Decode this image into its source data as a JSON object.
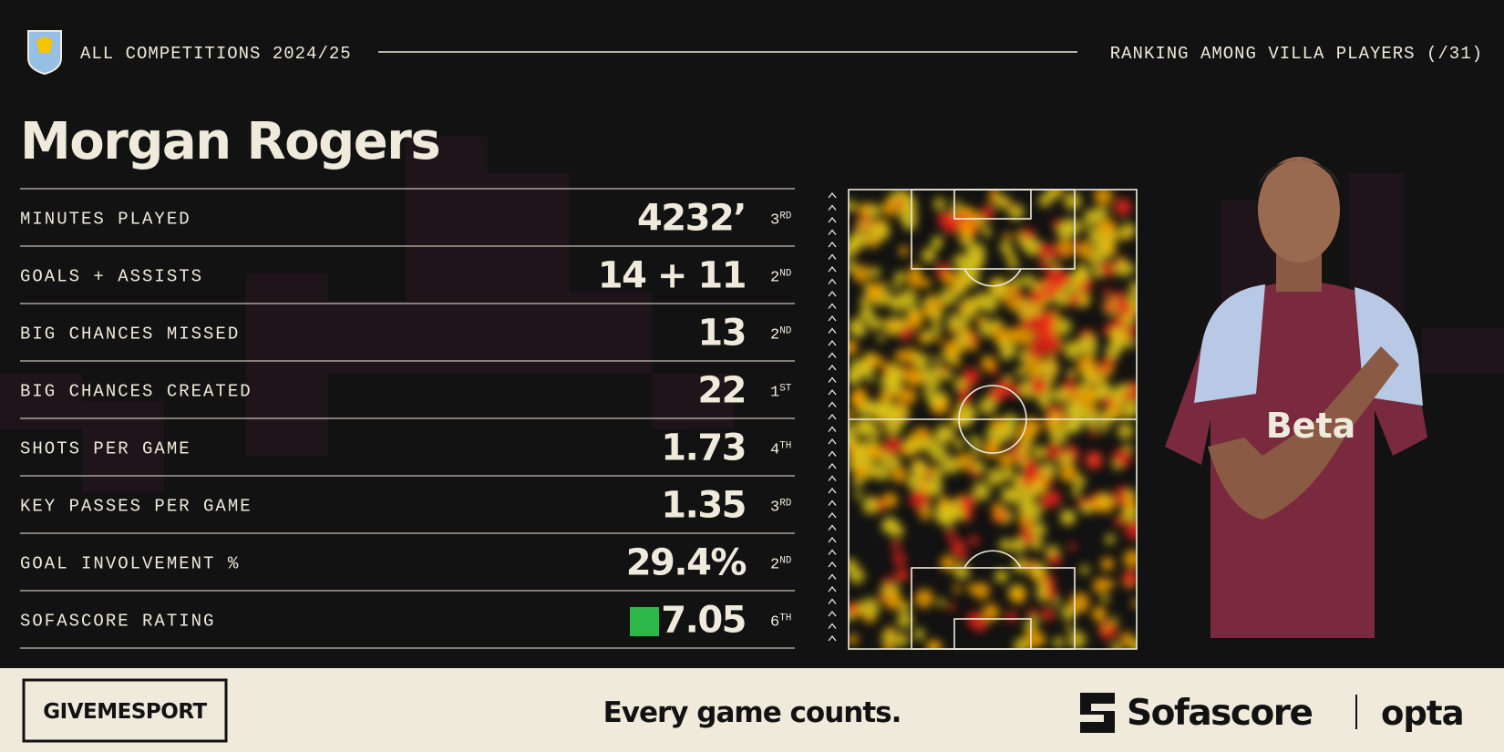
{
  "header": {
    "competition": "ALL COMPETITIONS 2024/25",
    "ranking_note": "RANKING AMONG VILLA PLAYERS (/31)"
  },
  "player": {
    "name": "Morgan Rogers"
  },
  "stats": [
    {
      "label": "MINUTES PLAYED",
      "value": "4232’",
      "rank": "3",
      "rank_suffix": "RD"
    },
    {
      "label": "GOALS + ASSISTS",
      "value": "14 + 11",
      "rank": "2",
      "rank_suffix": "ND"
    },
    {
      "label": "BIG CHANCES MISSED",
      "value": "13",
      "rank": "2",
      "rank_suffix": "ND"
    },
    {
      "label": "BIG CHANCES CREATED",
      "value": "22",
      "rank": "1",
      "rank_suffix": "ST"
    },
    {
      "label": "SHOTS PER GAME",
      "value": "1.73",
      "rank": "4",
      "rank_suffix": "TH"
    },
    {
      "label": "KEY PASSES PER GAME",
      "value": "1.35",
      "rank": "3",
      "rank_suffix": "RD"
    },
    {
      "label": "GOAL INVOLVEMENT %",
      "value": "29.4%",
      "rank": "2",
      "rank_suffix": "ND"
    },
    {
      "label": "SOFASCORE RATING",
      "value": "7.05",
      "rank": "6",
      "rank_suffix": "TH"
    }
  ],
  "footer": {
    "brand": "GIVEMESPORT",
    "tagline": "Every game counts.",
    "partner": "Sofascore",
    "partner2": "opta"
  }
}
